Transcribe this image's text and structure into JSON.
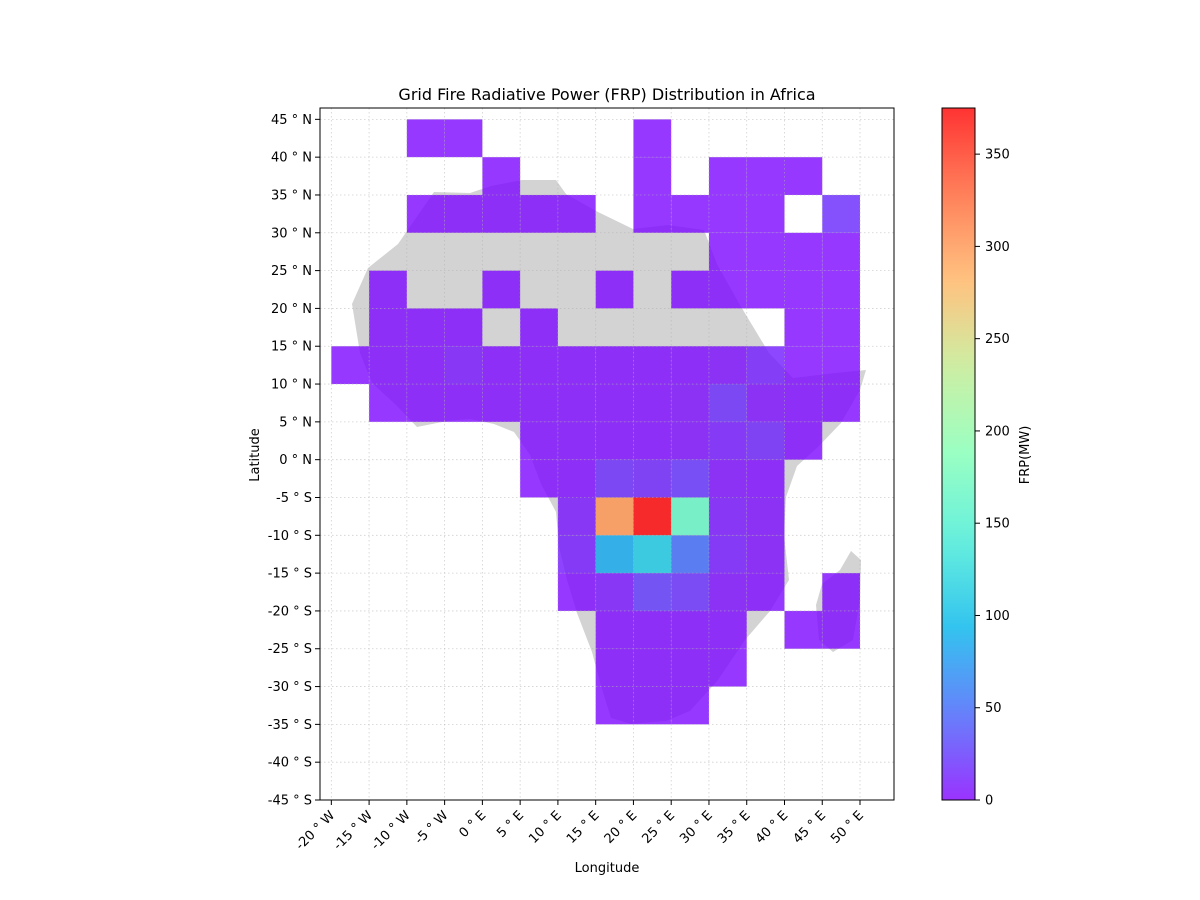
{
  "chart_data": {
    "type": "heatmap",
    "title": "Grid Fire Radiative Power (FRP) Distribution in Africa",
    "xlabel": "Longitude",
    "ylabel": "Latitude",
    "colorbar_label": "FRP(MW)",
    "colormap": "rainbow",
    "colormap_stops": [
      "#8000ff",
      "#4062fa",
      "#00b5eb",
      "#40ecd4",
      "#80ffb4",
      "#c0eb8d",
      "#ffb360",
      "#ff6232",
      "#ff0000"
    ],
    "cell_alpha": 0.8,
    "land_color": "#d3d3d3",
    "grid": true,
    "xlim": [
      -21.5,
      54.5
    ],
    "ylim": [
      -45,
      46.5
    ],
    "x_ticks": [
      -20,
      -15,
      -10,
      -5,
      0,
      5,
      10,
      15,
      20,
      25,
      30,
      35,
      40,
      45,
      50
    ],
    "x_tick_labels": [
      "-20$^\\circ$W",
      "-15$^\\circ$W",
      "-10$^\\circ$W",
      "-5$^\\circ$W",
      "0$^\\circ$E",
      "5$^\\circ$E",
      "10$^\\circ$E",
      "15$^\\circ$E",
      "20$^\\circ$E",
      "25$^\\circ$E",
      "30$^\\circ$E",
      "35$^\\circ$E",
      "40$^\\circ$E",
      "45$^\\circ$E",
      "50$^\\circ$E"
    ],
    "x_tick_display": [
      "-20 ° W",
      "-15 ° W",
      "-10 ° W",
      "-5 ° W",
      "0 ° E",
      "5 ° E",
      "10 ° E",
      "15 ° E",
      "20 ° E",
      "25 ° E",
      "30 ° E",
      "35 ° E",
      "40 ° E",
      "45 ° E",
      "50 ° E"
    ],
    "y_ticks": [
      45,
      40,
      35,
      30,
      25,
      20,
      15,
      10,
      5,
      0,
      -5,
      -10,
      -15,
      -20,
      -25,
      -30,
      -35,
      -40,
      -45
    ],
    "y_tick_display": [
      "45 ° N",
      "40 ° N",
      "35 ° N",
      "30 ° N",
      "25 ° N",
      "20 ° N",
      "15 ° N",
      "10 ° N",
      "5 ° N",
      "0 ° N",
      "-5 ° S",
      "-10 ° S",
      "-15 ° S",
      "-20 ° S",
      "-25 ° S",
      "-30 ° S",
      "-35 ° S",
      "-40 ° S",
      "-45 ° S"
    ],
    "colorbar_range": [
      0,
      375
    ],
    "colorbar_ticks": [
      0,
      50,
      100,
      150,
      200,
      250,
      300,
      350
    ],
    "cell_size_deg": 5,
    "cells": [
      {
        "lon": -10,
        "lat": 45,
        "frp": 3
      },
      {
        "lon": -5,
        "lat": 45,
        "frp": 3
      },
      {
        "lon": 20,
        "lat": 45,
        "frp": 3
      },
      {
        "lon": 0,
        "lat": 40,
        "frp": 3
      },
      {
        "lon": 20,
        "lat": 40,
        "frp": 3
      },
      {
        "lon": 30,
        "lat": 40,
        "frp": 3
      },
      {
        "lon": 35,
        "lat": 40,
        "frp": 3
      },
      {
        "lon": 40,
        "lat": 40,
        "frp": 3
      },
      {
        "lon": -10,
        "lat": 35,
        "frp": 3
      },
      {
        "lon": -5,
        "lat": 35,
        "frp": 3
      },
      {
        "lon": 0,
        "lat": 35,
        "frp": 3
      },
      {
        "lon": 5,
        "lat": 35,
        "frp": 3
      },
      {
        "lon": 10,
        "lat": 35,
        "frp": 3
      },
      {
        "lon": 20,
        "lat": 35,
        "frp": 3
      },
      {
        "lon": 25,
        "lat": 35,
        "frp": 3
      },
      {
        "lon": 30,
        "lat": 35,
        "frp": 3
      },
      {
        "lon": 35,
        "lat": 35,
        "frp": 3
      },
      {
        "lon": 45,
        "lat": 35,
        "frp": 18
      },
      {
        "lon": 30,
        "lat": 30,
        "frp": 3
      },
      {
        "lon": 35,
        "lat": 30,
        "frp": 3
      },
      {
        "lon": 40,
        "lat": 30,
        "frp": 3
      },
      {
        "lon": 45,
        "lat": 30,
        "frp": 3
      },
      {
        "lon": -15,
        "lat": 25,
        "frp": 3
      },
      {
        "lon": 0,
        "lat": 25,
        "frp": 3
      },
      {
        "lon": 15,
        "lat": 25,
        "frp": 3
      },
      {
        "lon": 25,
        "lat": 25,
        "frp": 3
      },
      {
        "lon": 30,
        "lat": 25,
        "frp": 3
      },
      {
        "lon": 35,
        "lat": 25,
        "frp": 3
      },
      {
        "lon": 40,
        "lat": 25,
        "frp": 3
      },
      {
        "lon": 45,
        "lat": 25,
        "frp": 3
      },
      {
        "lon": -15,
        "lat": 20,
        "frp": 3
      },
      {
        "lon": -10,
        "lat": 20,
        "frp": 3
      },
      {
        "lon": -5,
        "lat": 20,
        "frp": 3
      },
      {
        "lon": 5,
        "lat": 20,
        "frp": 3
      },
      {
        "lon": 40,
        "lat": 20,
        "frp": 3
      },
      {
        "lon": 45,
        "lat": 20,
        "frp": 3
      },
      {
        "lon": -20,
        "lat": 15,
        "frp": 3
      },
      {
        "lon": -15,
        "lat": 15,
        "frp": 3
      },
      {
        "lon": -10,
        "lat": 15,
        "frp": 3
      },
      {
        "lon": -5,
        "lat": 15,
        "frp": 8
      },
      {
        "lon": 0,
        "lat": 15,
        "frp": 3
      },
      {
        "lon": 5,
        "lat": 15,
        "frp": 3
      },
      {
        "lon": 10,
        "lat": 15,
        "frp": 3
      },
      {
        "lon": 15,
        "lat": 15,
        "frp": 3
      },
      {
        "lon": 20,
        "lat": 15,
        "frp": 3
      },
      {
        "lon": 25,
        "lat": 15,
        "frp": 3
      },
      {
        "lon": 30,
        "lat": 15,
        "frp": 5
      },
      {
        "lon": 35,
        "lat": 15,
        "frp": 12
      },
      {
        "lon": 40,
        "lat": 15,
        "frp": 3
      },
      {
        "lon": 45,
        "lat": 15,
        "frp": 3
      },
      {
        "lon": -15,
        "lat": 10,
        "frp": 3
      },
      {
        "lon": -10,
        "lat": 10,
        "frp": 3
      },
      {
        "lon": -5,
        "lat": 10,
        "frp": 3
      },
      {
        "lon": 0,
        "lat": 10,
        "frp": 3
      },
      {
        "lon": 5,
        "lat": 10,
        "frp": 3
      },
      {
        "lon": 10,
        "lat": 10,
        "frp": 3
      },
      {
        "lon": 15,
        "lat": 10,
        "frp": 3
      },
      {
        "lon": 20,
        "lat": 10,
        "frp": 3
      },
      {
        "lon": 25,
        "lat": 10,
        "frp": 5
      },
      {
        "lon": 30,
        "lat": 10,
        "frp": 18
      },
      {
        "lon": 35,
        "lat": 10,
        "frp": 5
      },
      {
        "lon": 40,
        "lat": 10,
        "frp": 3
      },
      {
        "lon": 45,
        "lat": 10,
        "frp": 3
      },
      {
        "lon": 5,
        "lat": 5,
        "frp": 3
      },
      {
        "lon": 10,
        "lat": 5,
        "frp": 3
      },
      {
        "lon": 15,
        "lat": 5,
        "frp": 3
      },
      {
        "lon": 20,
        "lat": 5,
        "frp": 3
      },
      {
        "lon": 25,
        "lat": 5,
        "frp": 5
      },
      {
        "lon": 30,
        "lat": 5,
        "frp": 10
      },
      {
        "lon": 35,
        "lat": 5,
        "frp": 15
      },
      {
        "lon": 40,
        "lat": 5,
        "frp": 3
      },
      {
        "lon": 5,
        "lat": 0,
        "frp": 3
      },
      {
        "lon": 10,
        "lat": 0,
        "frp": 3
      },
      {
        "lon": 15,
        "lat": 0,
        "frp": 18
      },
      {
        "lon": 20,
        "lat": 0,
        "frp": 15
      },
      {
        "lon": 25,
        "lat": 0,
        "frp": 22
      },
      {
        "lon": 30,
        "lat": 0,
        "frp": 5
      },
      {
        "lon": 35,
        "lat": 0,
        "frp": 3
      },
      {
        "lon": 15,
        "lat": -5,
        "frp": 300
      },
      {
        "lon": 20,
        "lat": -5,
        "frp": 375
      },
      {
        "lon": 25,
        "lat": -5,
        "frp": 165
      },
      {
        "lon": 30,
        "lat": -5,
        "frp": 8
      },
      {
        "lon": 35,
        "lat": -5,
        "frp": 5
      },
      {
        "lon": 10,
        "lat": -5,
        "frp": 8
      },
      {
        "lon": 10,
        "lat": -10,
        "frp": 10
      },
      {
        "lon": 15,
        "lat": -10,
        "frp": 85
      },
      {
        "lon": 20,
        "lat": -10,
        "frp": 110
      },
      {
        "lon": 25,
        "lat": -10,
        "frp": 50
      },
      {
        "lon": 30,
        "lat": -10,
        "frp": 10
      },
      {
        "lon": 35,
        "lat": -10,
        "frp": 5
      },
      {
        "lon": 10,
        "lat": -15,
        "frp": 3
      },
      {
        "lon": 15,
        "lat": -15,
        "frp": 8
      },
      {
        "lon": 20,
        "lat": -15,
        "frp": 25
      },
      {
        "lon": 25,
        "lat": -15,
        "frp": 20
      },
      {
        "lon": 30,
        "lat": -15,
        "frp": 5
      },
      {
        "lon": 35,
        "lat": -15,
        "frp": 3
      },
      {
        "lon": 45,
        "lat": -15,
        "frp": 3
      },
      {
        "lon": 15,
        "lat": -20,
        "frp": 3
      },
      {
        "lon": 20,
        "lat": -20,
        "frp": 3
      },
      {
        "lon": 25,
        "lat": -20,
        "frp": 3
      },
      {
        "lon": 30,
        "lat": -20,
        "frp": 3
      },
      {
        "lon": 40,
        "lat": -20,
        "frp": 3
      },
      {
        "lon": 45,
        "lat": -20,
        "frp": 3
      },
      {
        "lon": 15,
        "lat": -25,
        "frp": 3
      },
      {
        "lon": 20,
        "lat": -25,
        "frp": 3
      },
      {
        "lon": 25,
        "lat": -25,
        "frp": 3
      },
      {
        "lon": 30,
        "lat": -25,
        "frp": 3
      },
      {
        "lon": 15,
        "lat": -30,
        "frp": 3
      },
      {
        "lon": 20,
        "lat": -30,
        "frp": 3
      },
      {
        "lon": 25,
        "lat": -30,
        "frp": 3
      }
    ]
  }
}
